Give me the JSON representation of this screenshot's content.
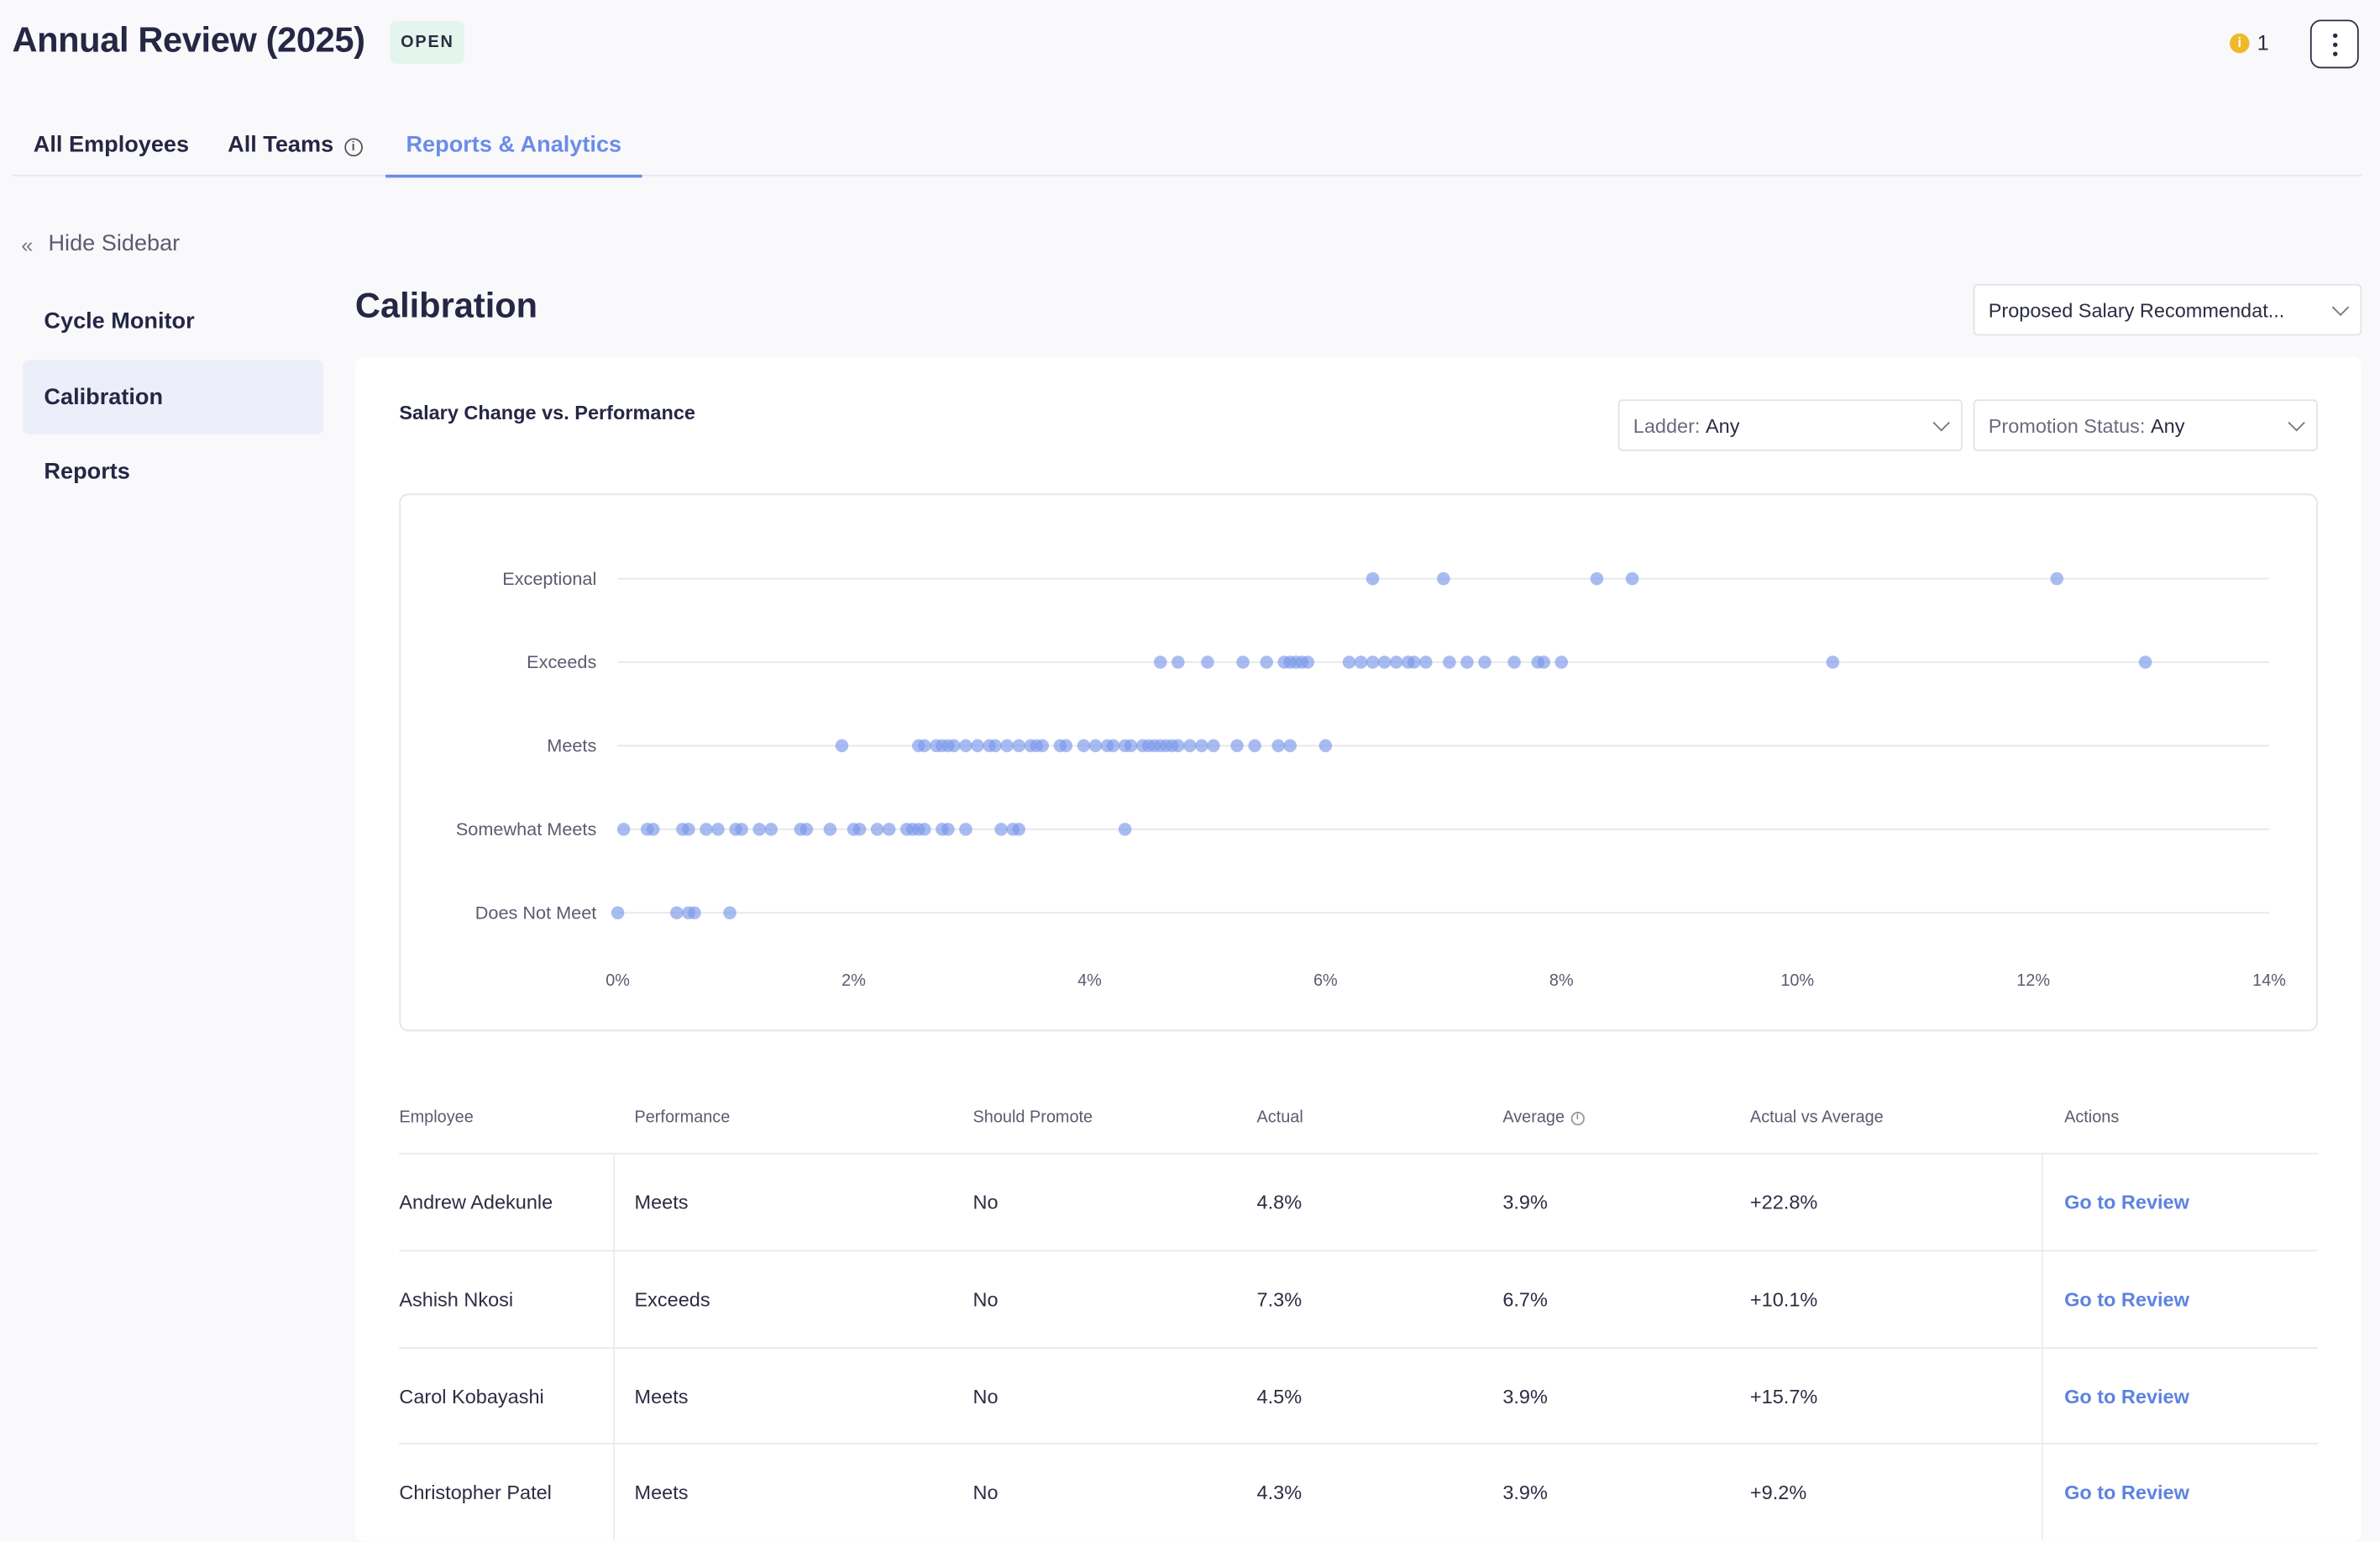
{
  "header": {
    "title": "Annual Review (2025)",
    "status_badge": "OPEN",
    "notification_count": "1"
  },
  "tabs": [
    {
      "label": "All Employees"
    },
    {
      "label": "All Teams"
    },
    {
      "label": "Reports & Analytics",
      "active": true
    }
  ],
  "sidebar": {
    "hide_label": "Hide Sidebar",
    "items": [
      {
        "label": "Cycle Monitor"
      },
      {
        "label": "Calibration",
        "active": true
      },
      {
        "label": "Reports"
      }
    ]
  },
  "main": {
    "title": "Calibration",
    "metric_select": "Proposed Salary Recommendat...",
    "card_title": "Salary Change vs. Performance",
    "filters": {
      "ladder_label": "Ladder:",
      "ladder_value": "Any",
      "promotion_label": "Promotion Status:",
      "promotion_value": "Any"
    }
  },
  "chart_data": {
    "type": "scatter",
    "title": "Salary Change vs. Performance",
    "x_ticks": [
      "0%",
      "2%",
      "4%",
      "6%",
      "8%",
      "10%",
      "12%",
      "14%"
    ],
    "xlim": [
      0,
      14
    ],
    "categories": [
      "Exceptional",
      "Exceeds",
      "Meets",
      "Somewhat Meets",
      "Does Not Meet"
    ],
    "accent_color": "#7b98ea",
    "series": [
      {
        "category": "Exceptional",
        "x": [
          6.4,
          7.0,
          8.3,
          8.6,
          12.2
        ]
      },
      {
        "category": "Exceeds",
        "x": [
          4.6,
          4.75,
          5.0,
          5.3,
          5.5,
          5.65,
          5.7,
          5.75,
          5.8,
          5.85,
          6.2,
          6.3,
          6.4,
          6.5,
          6.6,
          6.7,
          6.75,
          6.85,
          7.05,
          7.2,
          7.35,
          7.6,
          7.8,
          7.85,
          8.0,
          10.3,
          12.95
        ]
      },
      {
        "category": "Meets",
        "x": [
          1.9,
          2.55,
          2.6,
          2.7,
          2.75,
          2.8,
          2.85,
          2.95,
          3.05,
          3.15,
          3.2,
          3.3,
          3.4,
          3.5,
          3.55,
          3.6,
          3.75,
          3.8,
          3.95,
          4.05,
          4.15,
          4.2,
          4.3,
          4.35,
          4.45,
          4.5,
          4.55,
          4.6,
          4.65,
          4.7,
          4.75,
          4.85,
          4.95,
          5.05,
          5.25,
          5.4,
          5.6,
          5.7,
          6.0
        ]
      },
      {
        "category": "Somewhat Meets",
        "x": [
          0.05,
          0.25,
          0.3,
          0.55,
          0.6,
          0.75,
          0.85,
          1.0,
          1.05,
          1.2,
          1.3,
          1.55,
          1.6,
          1.8,
          2.0,
          2.05,
          2.2,
          2.3,
          2.45,
          2.5,
          2.55,
          2.6,
          2.75,
          2.8,
          2.95,
          3.25,
          3.35,
          3.4,
          4.3
        ]
      },
      {
        "category": "Does Not Meet",
        "x": [
          0.0,
          0.5,
          0.6,
          0.65,
          0.95
        ]
      }
    ]
  },
  "table": {
    "columns": [
      "Employee",
      "Performance",
      "Should Promote",
      "Actual",
      "Average",
      "Actual vs Average",
      "Actions"
    ],
    "rows": [
      {
        "employee": "Andrew Adekunle",
        "performance": "Meets",
        "promote": "No",
        "actual": "4.8%",
        "average": "3.9%",
        "diff": "+22.8%",
        "action": "Go to Review"
      },
      {
        "employee": "Ashish Nkosi",
        "performance": "Exceeds",
        "promote": "No",
        "actual": "7.3%",
        "average": "6.7%",
        "diff": "+10.1%",
        "action": "Go to Review"
      },
      {
        "employee": "Carol Kobayashi",
        "performance": "Meets",
        "promote": "No",
        "actual": "4.5%",
        "average": "3.9%",
        "diff": "+15.7%",
        "action": "Go to Review"
      },
      {
        "employee": "Christopher Patel",
        "performance": "Meets",
        "promote": "No",
        "actual": "4.3%",
        "average": "3.9%",
        "diff": "+9.2%",
        "action": "Go to Review"
      }
    ]
  }
}
